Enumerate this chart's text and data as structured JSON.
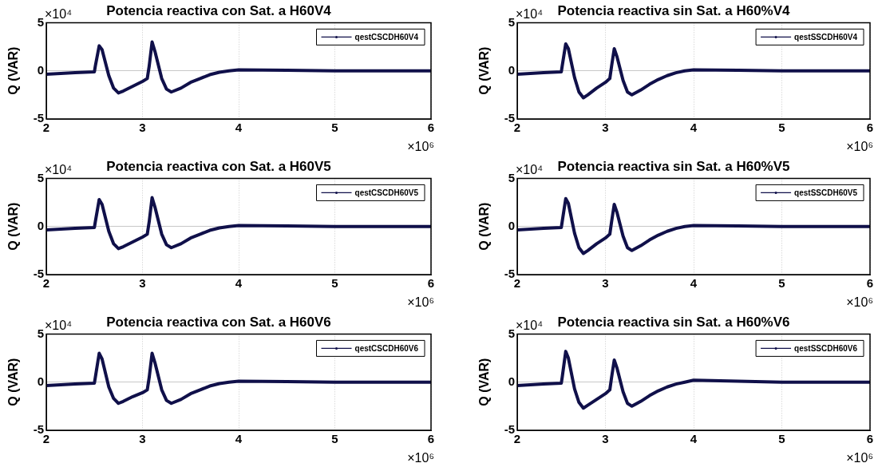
{
  "chart_data": [
    {
      "type": "line",
      "title": "Potencia reactiva con Sat. a H60V4",
      "ylabel": "Q (VAR)",
      "annotations": [
        "×10⁴",
        "×10⁶"
      ],
      "x": [
        2.0,
        2.3,
        2.5,
        2.51,
        2.55,
        2.58,
        2.65,
        2.7,
        2.75,
        2.8,
        2.9,
        3.0,
        3.05,
        3.07,
        3.1,
        3.13,
        3.2,
        3.25,
        3.3,
        3.4,
        3.5,
        3.6,
        3.7,
        3.8,
        3.9,
        4.0,
        4.5,
        5.0,
        6.0
      ],
      "series": [
        {
          "name": "qestCSCDH60V4",
          "color": "#10104a",
          "values": [
            -0.35,
            -0.2,
            -0.1,
            0.5,
            2.6,
            2.2,
            -0.5,
            -1.8,
            -2.3,
            -2.1,
            -1.6,
            -1.1,
            -0.8,
            0.5,
            3.0,
            2.0,
            -0.8,
            -1.9,
            -2.2,
            -1.8,
            -1.2,
            -0.8,
            -0.4,
            -0.15,
            0.0,
            0.1,
            0.05,
            0,
            0
          ]
        }
      ],
      "xlim": [
        2,
        6
      ],
      "ylim": [
        -5,
        5
      ],
      "xticks": [
        2,
        3,
        4,
        5,
        6
      ],
      "yticks": [
        -5,
        0,
        5
      ],
      "grid": true,
      "legend": "top right"
    },
    {
      "type": "line",
      "title": "Potencia reactiva sin Sat. a H60%V4",
      "ylabel": "Q (VAR)",
      "annotations": [
        "×10⁴",
        "×10⁶"
      ],
      "x": [
        2.0,
        2.3,
        2.5,
        2.51,
        2.55,
        2.58,
        2.65,
        2.7,
        2.75,
        2.8,
        2.9,
        3.0,
        3.05,
        3.07,
        3.1,
        3.13,
        3.2,
        3.25,
        3.3,
        3.4,
        3.5,
        3.6,
        3.7,
        3.8,
        3.9,
        4.0,
        4.5,
        5.0,
        6.0
      ],
      "series": [
        {
          "name": "qestSSCDH60V4",
          "color": "#10104a",
          "values": [
            -0.35,
            -0.2,
            -0.1,
            0.5,
            2.8,
            2.3,
            -0.7,
            -2.2,
            -2.8,
            -2.5,
            -1.8,
            -1.2,
            -0.8,
            0.5,
            2.3,
            1.5,
            -1.0,
            -2.2,
            -2.5,
            -2.0,
            -1.4,
            -0.9,
            -0.5,
            -0.2,
            0.0,
            0.1,
            0.05,
            0,
            0
          ]
        }
      ],
      "xlim": [
        2,
        6
      ],
      "ylim": [
        -5,
        5
      ],
      "xticks": [
        2,
        3,
        4,
        5,
        6
      ],
      "yticks": [
        -5,
        0,
        5
      ],
      "grid": true,
      "legend": "top right"
    },
    {
      "type": "line",
      "title": "Potencia reactiva con Sat. a H60V5",
      "ylabel": "Q (VAR)",
      "annotations": [
        "×10⁴",
        "×10⁶"
      ],
      "x": [
        2.0,
        2.3,
        2.5,
        2.51,
        2.55,
        2.58,
        2.65,
        2.7,
        2.75,
        2.8,
        2.9,
        3.0,
        3.05,
        3.07,
        3.1,
        3.13,
        3.2,
        3.25,
        3.3,
        3.4,
        3.5,
        3.6,
        3.7,
        3.8,
        3.9,
        4.0,
        4.5,
        5.0,
        6.0
      ],
      "series": [
        {
          "name": "qestCSCDH60V5",
          "color": "#10104a",
          "values": [
            -0.35,
            -0.2,
            -0.1,
            0.5,
            2.8,
            2.3,
            -0.5,
            -1.8,
            -2.3,
            -2.1,
            -1.6,
            -1.1,
            -0.8,
            0.5,
            3.0,
            2.0,
            -0.8,
            -1.9,
            -2.2,
            -1.8,
            -1.2,
            -0.8,
            -0.4,
            -0.15,
            0.0,
            0.1,
            0.05,
            0,
            0
          ]
        }
      ],
      "xlim": [
        2,
        6
      ],
      "ylim": [
        -5,
        5
      ],
      "xticks": [
        2,
        3,
        4,
        5,
        6
      ],
      "yticks": [
        -5,
        0,
        5
      ],
      "grid": true,
      "legend": "top right"
    },
    {
      "type": "line",
      "title": "Potencia reactiva sin Sat. a H60%V5",
      "ylabel": "Q (VAR)",
      "annotations": [
        "×10⁴",
        "×10⁶"
      ],
      "x": [
        2.0,
        2.3,
        2.5,
        2.51,
        2.55,
        2.58,
        2.65,
        2.7,
        2.75,
        2.8,
        2.9,
        3.0,
        3.05,
        3.07,
        3.1,
        3.13,
        3.2,
        3.25,
        3.3,
        3.4,
        3.5,
        3.6,
        3.7,
        3.8,
        3.9,
        4.0,
        4.5,
        5.0,
        6.0
      ],
      "series": [
        {
          "name": "qestSSCDH60V5",
          "color": "#10104a",
          "values": [
            -0.35,
            -0.2,
            -0.1,
            0.5,
            2.9,
            2.4,
            -0.7,
            -2.2,
            -2.8,
            -2.5,
            -1.8,
            -1.2,
            -0.8,
            0.5,
            2.3,
            1.5,
            -1.0,
            -2.2,
            -2.5,
            -2.0,
            -1.4,
            -0.9,
            -0.5,
            -0.2,
            0.0,
            0.1,
            0.05,
            0,
            0
          ]
        }
      ],
      "xlim": [
        2,
        6
      ],
      "ylim": [
        -5,
        5
      ],
      "xticks": [
        2,
        3,
        4,
        5,
        6
      ],
      "yticks": [
        -5,
        0,
        5
      ],
      "grid": true,
      "legend": "top right"
    },
    {
      "type": "line",
      "title": "Potencia reactiva con Sat. a H60V6",
      "ylabel": "Q (VAR)",
      "annotations": [
        "×10⁴",
        "×10⁶"
      ],
      "x": [
        2.0,
        2.3,
        2.5,
        2.51,
        2.55,
        2.58,
        2.65,
        2.7,
        2.75,
        2.8,
        2.9,
        3.0,
        3.05,
        3.07,
        3.1,
        3.13,
        3.2,
        3.25,
        3.3,
        3.4,
        3.5,
        3.6,
        3.7,
        3.8,
        3.9,
        4.0,
        4.5,
        5.0,
        6.0
      ],
      "series": [
        {
          "name": "qestCSCDH60V6",
          "color": "#10104a",
          "values": [
            -0.35,
            -0.2,
            -0.1,
            0.5,
            3.0,
            2.4,
            -0.5,
            -1.7,
            -2.2,
            -2.0,
            -1.5,
            -1.1,
            -0.8,
            0.5,
            3.0,
            2.0,
            -0.8,
            -1.9,
            -2.2,
            -1.8,
            -1.2,
            -0.8,
            -0.4,
            -0.15,
            0.0,
            0.1,
            0.05,
            0,
            0
          ]
        }
      ],
      "xlim": [
        2,
        6
      ],
      "ylim": [
        -5,
        5
      ],
      "xticks": [
        2,
        3,
        4,
        5,
        6
      ],
      "yticks": [
        -5,
        0,
        5
      ],
      "grid": true,
      "legend": "top right"
    },
    {
      "type": "line",
      "title": "Potencia reactiva sin Sat. a H60%V6",
      "ylabel": "Q (VAR)",
      "annotations": [
        "×10⁴",
        "×10⁶"
      ],
      "x": [
        2.0,
        2.3,
        2.5,
        2.51,
        2.55,
        2.58,
        2.65,
        2.7,
        2.75,
        2.8,
        2.9,
        3.0,
        3.05,
        3.07,
        3.1,
        3.13,
        3.2,
        3.25,
        3.3,
        3.4,
        3.5,
        3.6,
        3.7,
        3.8,
        3.9,
        4.0,
        4.5,
        5.0,
        6.0
      ],
      "series": [
        {
          "name": "qestSSCDH60V6",
          "color": "#10104a",
          "values": [
            -0.35,
            -0.2,
            -0.1,
            0.5,
            3.2,
            2.5,
            -0.7,
            -2.1,
            -2.7,
            -2.4,
            -1.8,
            -1.2,
            -0.8,
            0.5,
            2.3,
            1.5,
            -1.0,
            -2.2,
            -2.5,
            -2.0,
            -1.4,
            -0.9,
            -0.5,
            -0.2,
            0.0,
            0.2,
            0.1,
            0,
            0
          ]
        }
      ],
      "xlim": [
        2,
        6
      ],
      "ylim": [
        -5,
        5
      ],
      "xticks": [
        2,
        3,
        4,
        5,
        6
      ],
      "yticks": [
        -5,
        0,
        5
      ],
      "grid": true,
      "legend": "top right"
    }
  ]
}
